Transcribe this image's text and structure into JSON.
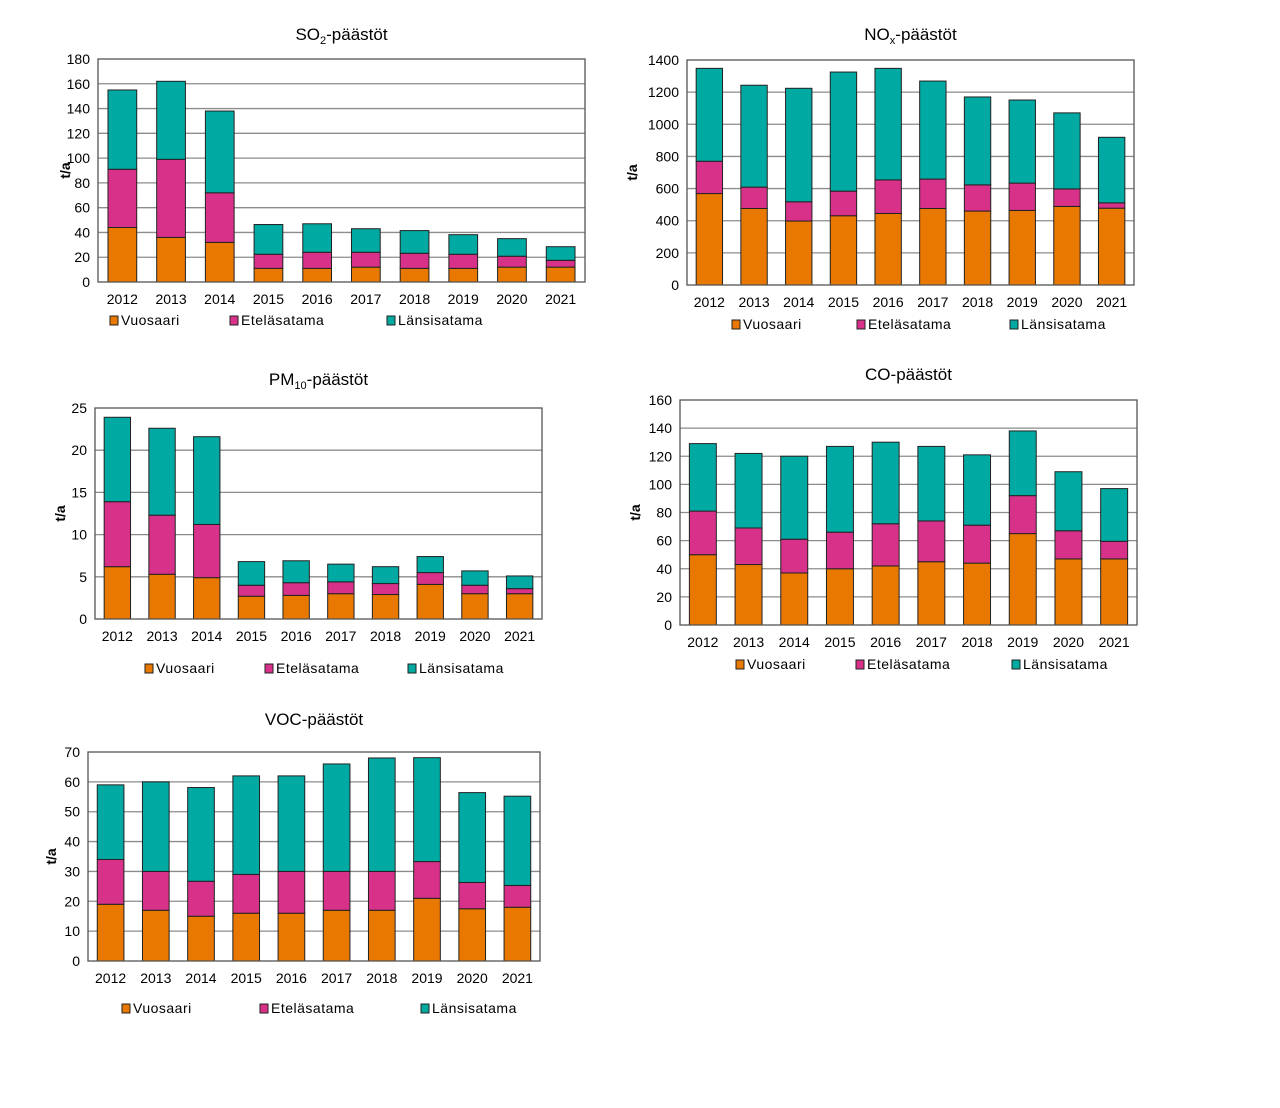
{
  "series_colors": {
    "Vuosaari": "#E87800",
    "Eteläsatama": "#D8318A",
    "Länsisatama": "#00A9A2"
  },
  "chart_data": [
    {
      "id": "so2",
      "type": "bar",
      "stacked": true,
      "title": "SO",
      "title_sub": "2",
      "title_suffix": "-päästöt",
      "xlabel": "",
      "ylabel": "t/a",
      "ylim": [
        0,
        180
      ],
      "yticks": [
        0,
        20,
        40,
        60,
        80,
        100,
        120,
        140,
        160,
        180
      ],
      "grid": true,
      "legend_position": "bottom",
      "categories": [
        "2012",
        "2013",
        "2014",
        "2015",
        "2016",
        "2017",
        "2018",
        "2019",
        "2020",
        "2021"
      ],
      "series": [
        {
          "name": "Vuosaari",
          "values": [
            44,
            36,
            32,
            11,
            11,
            12,
            11,
            11,
            12,
            12
          ]
        },
        {
          "name": "Eteläsatama",
          "values": [
            47,
            63,
            40,
            11.4,
            13,
            12,
            12.2,
            11.4,
            8.8,
            5.5
          ]
        },
        {
          "name": "Länsisatama",
          "values": [
            64,
            63,
            66,
            24,
            23,
            19,
            18.3,
            15.8,
            14.2,
            11
          ]
        }
      ]
    },
    {
      "id": "nox",
      "type": "bar",
      "stacked": true,
      "title": "NO",
      "title_sub": "x",
      "title_suffix": "-päästöt",
      "xlabel": "",
      "ylabel": "t/a",
      "ylim": [
        0,
        1400
      ],
      "yticks": [
        0,
        200,
        400,
        600,
        800,
        1000,
        1200,
        1400
      ],
      "grid": true,
      "legend_position": "bottom",
      "categories": [
        "2012",
        "2013",
        "2014",
        "2015",
        "2016",
        "2017",
        "2018",
        "2019",
        "2020",
        "2021"
      ],
      "series": [
        {
          "name": "Vuosaari",
          "values": [
            569,
            476,
            398,
            431,
            445,
            476,
            460,
            464,
            489,
            478
          ]
        },
        {
          "name": "Eteläsatama",
          "values": [
            201,
            133,
            120,
            153,
            209,
            183,
            163,
            170,
            109,
            33
          ]
        },
        {
          "name": "Länsisatama",
          "values": [
            578,
            634,
            706,
            741,
            694,
            610,
            547,
            517,
            473,
            408
          ]
        }
      ]
    },
    {
      "id": "pm10",
      "type": "bar",
      "stacked": true,
      "title": "PM",
      "title_sub": "10",
      "title_suffix": "-päästöt",
      "xlabel": "",
      "ylabel": "t/a",
      "ylim": [
        0,
        25
      ],
      "yticks": [
        0,
        5,
        10,
        15,
        20,
        25
      ],
      "grid": true,
      "legend_position": "bottom",
      "categories": [
        "2012",
        "2013",
        "2014",
        "2015",
        "2016",
        "2017",
        "2018",
        "2019",
        "2020",
        "2021"
      ],
      "series": [
        {
          "name": "Vuosaari",
          "values": [
            6.2,
            5.3,
            4.9,
            2.7,
            2.8,
            3.0,
            2.9,
            4.1,
            3.0,
            3.0
          ]
        },
        {
          "name": "Eteläsatama",
          "values": [
            7.7,
            7.0,
            6.3,
            1.3,
            1.5,
            1.4,
            1.3,
            1.4,
            1.0,
            0.6
          ]
        },
        {
          "name": "Länsisatama",
          "values": [
            10.0,
            10.3,
            10.4,
            2.8,
            2.6,
            2.1,
            2.0,
            1.9,
            1.7,
            1.5
          ]
        }
      ]
    },
    {
      "id": "co",
      "type": "bar",
      "stacked": true,
      "title": "CO-päästöt",
      "title_sub": "",
      "title_suffix": "",
      "xlabel": "",
      "ylabel": "t/a",
      "ylim": [
        0,
        160
      ],
      "yticks": [
        0,
        20,
        40,
        60,
        80,
        100,
        120,
        140,
        160
      ],
      "grid": true,
      "legend_position": "bottom",
      "categories": [
        "2012",
        "2013",
        "2014",
        "2015",
        "2016",
        "2017",
        "2018",
        "2019",
        "2020",
        "2021"
      ],
      "series": [
        {
          "name": "Vuosaari",
          "values": [
            50,
            43,
            37,
            40,
            42,
            45,
            44,
            65,
            47,
            47
          ]
        },
        {
          "name": "Eteläsatama",
          "values": [
            31,
            26,
            24,
            26,
            30,
            29,
            27,
            27,
            20,
            12.5
          ]
        },
        {
          "name": "Länsisatama",
          "values": [
            48,
            53,
            59,
            61,
            58,
            53,
            50,
            46,
            42,
            37.5
          ]
        }
      ]
    },
    {
      "id": "voc",
      "type": "bar",
      "stacked": true,
      "title": "VOC-päästöt",
      "title_sub": "",
      "title_suffix": "",
      "xlabel": "",
      "ylabel": "t/a",
      "ylim": [
        0,
        70
      ],
      "yticks": [
        0,
        10,
        20,
        30,
        40,
        50,
        60,
        70
      ],
      "grid": true,
      "legend_position": "bottom",
      "categories": [
        "2012",
        "2013",
        "2014",
        "2015",
        "2016",
        "2017",
        "2018",
        "2019",
        "2020",
        "2021"
      ],
      "series": [
        {
          "name": "Vuosaari",
          "values": [
            19,
            17,
            15,
            16,
            16,
            17,
            17,
            21,
            17.5,
            18
          ]
        },
        {
          "name": "Eteläsatama",
          "values": [
            15,
            13,
            11.7,
            13,
            14,
            13,
            13,
            12.3,
            8.8,
            7.3
          ]
        },
        {
          "name": "Länsisatama",
          "values": [
            25,
            30,
            31.4,
            33,
            32,
            36,
            38,
            34.8,
            30.1,
            29.9
          ]
        }
      ]
    }
  ]
}
